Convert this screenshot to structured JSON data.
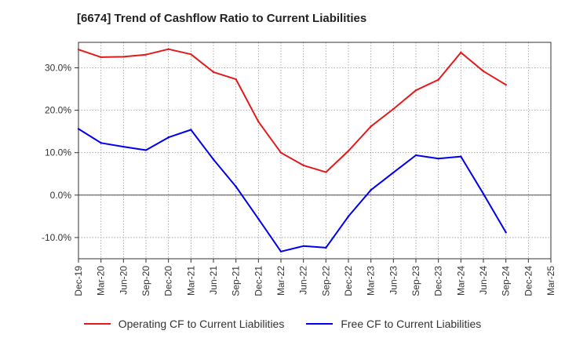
{
  "chart_data": {
    "type": "line",
    "title": "[6674]  Trend of Cashflow Ratio to Current Liabilities",
    "xlabel": "",
    "ylabel": "",
    "categories": [
      "Dec-19",
      "Mar-20",
      "Jun-20",
      "Sep-20",
      "Dec-20",
      "Mar-21",
      "Jun-21",
      "Sep-21",
      "Dec-21",
      "Mar-22",
      "Jun-22",
      "Sep-22",
      "Dec-22",
      "Mar-23",
      "Jun-23",
      "Sep-23",
      "Dec-23",
      "Mar-24",
      "Jun-24",
      "Sep-24",
      "Dec-24",
      "Mar-25"
    ],
    "ylim": [
      -15,
      36
    ],
    "yticks": [
      -10,
      0,
      10,
      20,
      30
    ],
    "ytick_labels": [
      "-10.0%",
      "0.0%",
      "10.0%",
      "20.0%",
      "30.0%"
    ],
    "grid": true,
    "legend_position": "bottom",
    "series": [
      {
        "name": "Operating CF to Current Liabilities",
        "color": "#e31a1c",
        "values": [
          34.3,
          32.5,
          32.6,
          33.1,
          34.4,
          33.2,
          29.0,
          27.3,
          17.3,
          10.0,
          7.0,
          5.4,
          10.4,
          16.2,
          20.3,
          24.7,
          27.2,
          33.6,
          29.2,
          26.0,
          null,
          null
        ]
      },
      {
        "name": "Free CF to Current Liabilities",
        "color": "#0000ee",
        "values": [
          15.6,
          12.3,
          11.4,
          10.6,
          13.6,
          15.4,
          8.4,
          2.0,
          -5.6,
          -13.3,
          -12.0,
          -12.4,
          -5.0,
          1.2,
          5.3,
          9.4,
          8.6,
          9.1,
          0.3,
          -8.8,
          null,
          null
        ]
      }
    ]
  }
}
